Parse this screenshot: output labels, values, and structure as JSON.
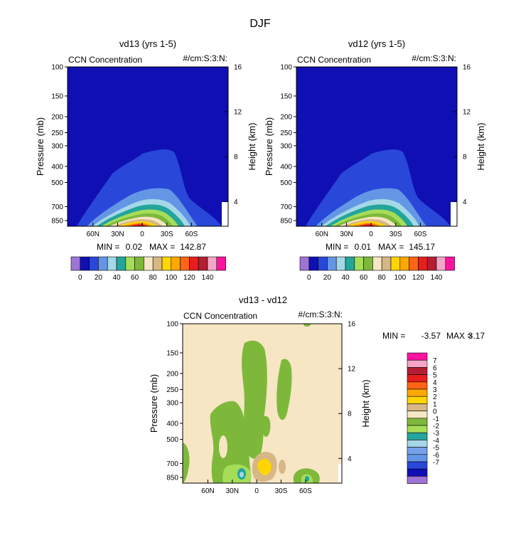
{
  "figure": {
    "title": "DJF"
  },
  "colors": {
    "panel_scale": [
      "#9e75d4",
      "#0f0fb4",
      "#2947d9",
      "#6496e6",
      "#a5d8e6",
      "#23a59b",
      "#a5dd58",
      "#7db83b",
      "#f6e6c3",
      "#d7b785",
      "#ffd500",
      "#ffa800",
      "#ff6414",
      "#e61e1e",
      "#b31e32",
      "#f5a5c8",
      "#ff14a0"
    ],
    "diff_scale": [
      "#9e75d4",
      "#0f0fb4",
      "#2947d9",
      "#6496e6",
      "#78a0eb",
      "#a5d8e6",
      "#23a59b",
      "#a5dd58",
      "#7db83b",
      "#f6e6c3",
      "#d7b785",
      "#ffd500",
      "#ffa800",
      "#ff6414",
      "#e61e1e",
      "#b31e32",
      "#f5a5c8",
      "#ff14a0"
    ]
  },
  "axes": {
    "pressure_label": "Pressure (mb)",
    "height_label": "Height (km)",
    "pressure_ticks": [
      "100",
      "150",
      "200",
      "250",
      "300",
      "400",
      "500",
      "700",
      "850"
    ],
    "height_ticks": [
      "16",
      "12",
      "8",
      "4"
    ],
    "lat_ticks": [
      "60N",
      "30N",
      "0",
      "30S",
      "60S"
    ]
  },
  "chart_data": [
    {
      "type": "heatmap",
      "title": "vd13 (yrs 1-5)",
      "left_label": "CCN Concentration",
      "right_label": "#/cm:S:3:N:",
      "stats": {
        "min_text": "MIN =",
        "min": "0.02",
        "max_text": "MAX =",
        "max": "142.87"
      },
      "colorbar_labels": [
        "0",
        "20",
        "40",
        "60",
        "80",
        "100",
        "120",
        "140"
      ]
    },
    {
      "type": "heatmap",
      "title": "vd12 (yrs 1-5)",
      "left_label": "CCN Concentration",
      "right_label": "#/cm:S:3:N:",
      "stats": {
        "min_text": "MIN =",
        "min": "0.01",
        "max_text": "MAX =",
        "max": "145.17"
      },
      "colorbar_labels": [
        "0",
        "20",
        "40",
        "60",
        "80",
        "100",
        "120",
        "140"
      ]
    },
    {
      "type": "heatmap",
      "title": "vd13 - vd12",
      "left_label": "CCN Concentration",
      "right_label": "#/cm:S:3:N:",
      "stats": {
        "min_text": "MIN =",
        "min": "-3.57",
        "max_text": "MAX =",
        "max": "3.17"
      },
      "colorbar_labels": [
        "7",
        "6",
        "5",
        "4",
        "3",
        "2",
        "1",
        "0",
        "-1",
        "-2",
        "-3",
        "-4",
        "-5",
        "-6",
        "-7"
      ]
    }
  ]
}
